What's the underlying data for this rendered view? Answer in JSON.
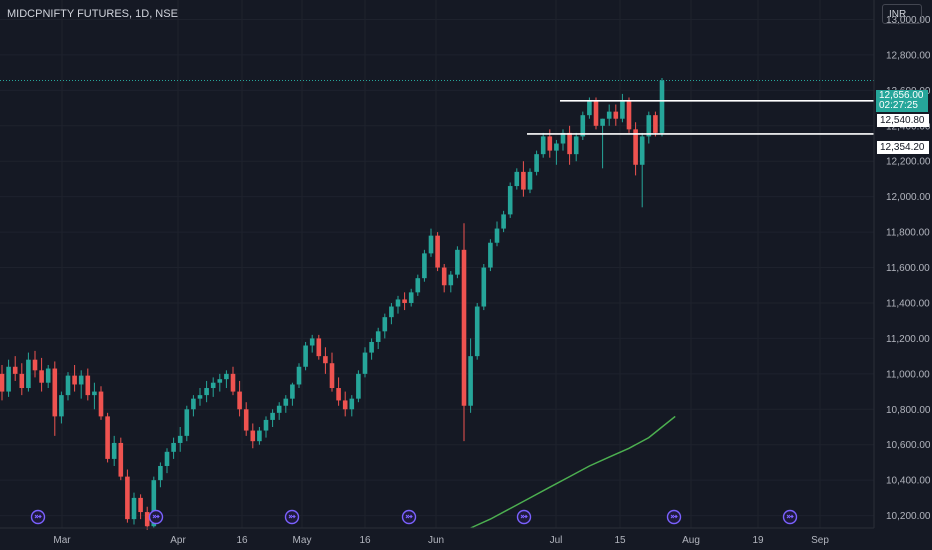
{
  "header": {
    "symbol_title": "MIDCPNIFTY FUTURES, 1D, NSE",
    "currency": "INR"
  },
  "colors": {
    "background": "#151924",
    "up": "#26a69a",
    "down": "#ef5350",
    "moving_average": "#4caf50",
    "level_line": "#ffffff",
    "event_icon": "#7b61ff"
  },
  "price_tags": {
    "last_price": "12,656.00",
    "countdown": "02:27:25",
    "resistance": "12,540.80",
    "support": "12,354.20"
  },
  "event_icon_name": "forward-arrow-circle-icon",
  "chart_data": {
    "type": "candlestick",
    "title": "MIDCPNIFTY FUTURES, 1D, NSE",
    "y_axis_ticks": [
      "13,000.00",
      "12,800.00",
      "12,600.00",
      "12,400.00",
      "12,200.00",
      "12,000.00",
      "11,800.00",
      "11,600.00",
      "11,400.00",
      "11,200.00",
      "11,000.00",
      "10,800.00",
      "10,600.00",
      "10,400.00",
      "10,200.00"
    ],
    "x_axis_ticks": [
      "Mar",
      "Apr",
      "16",
      "May",
      "16",
      "Jun",
      "Jul",
      "15",
      "Aug",
      "19",
      "Sep"
    ],
    "ylim": [
      10130,
      13110
    ],
    "horizontal_levels": [
      12540.8,
      12354.2
    ],
    "last_price": 12656.0,
    "moving_average_label": "",
    "candles": [
      [
        11000,
        11050,
        10850,
        10900
      ],
      [
        10900,
        11080,
        10870,
        11040
      ],
      [
        11040,
        11100,
        10960,
        11000
      ],
      [
        11000,
        11060,
        10880,
        10920
      ],
      [
        10920,
        11120,
        10900,
        11080
      ],
      [
        11080,
        11130,
        10980,
        11020
      ],
      [
        11020,
        11090,
        10900,
        10950
      ],
      [
        10950,
        11050,
        10920,
        11030
      ],
      [
        11030,
        11070,
        10650,
        10760
      ],
      [
        10760,
        10900,
        10720,
        10880
      ],
      [
        10880,
        11010,
        10850,
        10990
      ],
      [
        10990,
        11050,
        10900,
        10940
      ],
      [
        10940,
        11020,
        10860,
        10990
      ],
      [
        10990,
        11030,
        10850,
        10880
      ],
      [
        10880,
        10950,
        10800,
        10900
      ],
      [
        10900,
        10930,
        10740,
        10760
      ],
      [
        10760,
        10780,
        10500,
        10520
      ],
      [
        10520,
        10650,
        10480,
        10610
      ],
      [
        10610,
        10640,
        10400,
        10420
      ],
      [
        10420,
        10460,
        10160,
        10180
      ],
      [
        10180,
        10330,
        10150,
        10300
      ],
      [
        10300,
        10320,
        10180,
        10220
      ],
      [
        10220,
        10250,
        10120,
        10140
      ],
      [
        10140,
        10420,
        10130,
        10400
      ],
      [
        10400,
        10500,
        10360,
        10480
      ],
      [
        10480,
        10580,
        10440,
        10560
      ],
      [
        10560,
        10640,
        10520,
        10610
      ],
      [
        10610,
        10700,
        10560,
        10650
      ],
      [
        10650,
        10820,
        10620,
        10800
      ],
      [
        10800,
        10880,
        10760,
        10860
      ],
      [
        10860,
        10920,
        10820,
        10880
      ],
      [
        10880,
        10960,
        10840,
        10920
      ],
      [
        10920,
        10980,
        10870,
        10950
      ],
      [
        10950,
        11000,
        10900,
        10970
      ],
      [
        10970,
        11020,
        10920,
        11000
      ],
      [
        11000,
        11040,
        10880,
        10900
      ],
      [
        10900,
        10960,
        10760,
        10800
      ],
      [
        10800,
        10840,
        10650,
        10680
      ],
      [
        10680,
        10720,
        10580,
        10620
      ],
      [
        10620,
        10700,
        10600,
        10680
      ],
      [
        10680,
        10760,
        10640,
        10740
      ],
      [
        10740,
        10800,
        10700,
        10780
      ],
      [
        10780,
        10840,
        10740,
        10820
      ],
      [
        10820,
        10880,
        10780,
        10860
      ],
      [
        10860,
        10950,
        10820,
        10940
      ],
      [
        10940,
        11060,
        10920,
        11040
      ],
      [
        11040,
        11180,
        11020,
        11160
      ],
      [
        11160,
        11220,
        11120,
        11200
      ],
      [
        11200,
        11220,
        11080,
        11100
      ],
      [
        11100,
        11150,
        11000,
        11060
      ],
      [
        11060,
        11120,
        10900,
        10920
      ],
      [
        10920,
        10980,
        10820,
        10850
      ],
      [
        10850,
        10900,
        10760,
        10800
      ],
      [
        10800,
        10880,
        10760,
        10860
      ],
      [
        10860,
        11020,
        10840,
        11000
      ],
      [
        11000,
        11150,
        10980,
        11120
      ],
      [
        11120,
        11200,
        11080,
        11180
      ],
      [
        11180,
        11260,
        11140,
        11240
      ],
      [
        11240,
        11340,
        11200,
        11320
      ],
      [
        11320,
        11400,
        11280,
        11380
      ],
      [
        11380,
        11440,
        11340,
        11420
      ],
      [
        11420,
        11460,
        11360,
        11400
      ],
      [
        11400,
        11480,
        11380,
        11460
      ],
      [
        11460,
        11560,
        11440,
        11540
      ],
      [
        11540,
        11700,
        11520,
        11680
      ],
      [
        11680,
        11820,
        11660,
        11780
      ],
      [
        11780,
        11800,
        11580,
        11600
      ],
      [
        11600,
        11620,
        11460,
        11500
      ],
      [
        11500,
        11580,
        11460,
        11560
      ],
      [
        11560,
        11720,
        11540,
        11700
      ],
      [
        11700,
        11850,
        10620,
        10820
      ],
      [
        10820,
        11200,
        10780,
        11100
      ],
      [
        11100,
        11400,
        11080,
        11380
      ],
      [
        11380,
        11620,
        11360,
        11600
      ],
      [
        11600,
        11760,
        11580,
        11740
      ],
      [
        11740,
        11860,
        11720,
        11820
      ],
      [
        11820,
        11920,
        11800,
        11900
      ],
      [
        11900,
        12080,
        11880,
        12060
      ],
      [
        12060,
        12160,
        12040,
        12140
      ],
      [
        12140,
        12200,
        12000,
        12040
      ],
      [
        12040,
        12160,
        12020,
        12140
      ],
      [
        12140,
        12260,
        12120,
        12240
      ],
      [
        12240,
        12360,
        12220,
        12340
      ],
      [
        12340,
        12380,
        12220,
        12260
      ],
      [
        12260,
        12320,
        12180,
        12300
      ],
      [
        12300,
        12380,
        12260,
        12360
      ],
      [
        12360,
        12400,
        12180,
        12240
      ],
      [
        12240,
        12360,
        12200,
        12340
      ],
      [
        12340,
        12480,
        12320,
        12460
      ],
      [
        12460,
        12560,
        12440,
        12540
      ],
      [
        12540,
        12560,
        12380,
        12400
      ],
      [
        12400,
        12440,
        12160,
        12440
      ],
      [
        12440,
        12520,
        12400,
        12480
      ],
      [
        12480,
        12520,
        12400,
        12440
      ],
      [
        12440,
        12580,
        12420,
        12540
      ],
      [
        12540,
        12560,
        12360,
        12380
      ],
      [
        12380,
        12420,
        12120,
        12180
      ],
      [
        12180,
        12360,
        11940,
        12340
      ],
      [
        12340,
        12480,
        12300,
        12460
      ],
      [
        12460,
        12480,
        12340,
        12360
      ],
      [
        12360,
        12670,
        12340,
        12656
      ]
    ],
    "moving_average": [
      [
        71,
        10130
      ],
      [
        74,
        10180
      ],
      [
        77,
        10240
      ],
      [
        80,
        10300
      ],
      [
        83,
        10360
      ],
      [
        86,
        10420
      ],
      [
        89,
        10480
      ],
      [
        92,
        10530
      ],
      [
        95,
        10580
      ],
      [
        98,
        10640
      ],
      [
        100,
        10700
      ],
      [
        102,
        10760
      ]
    ]
  }
}
